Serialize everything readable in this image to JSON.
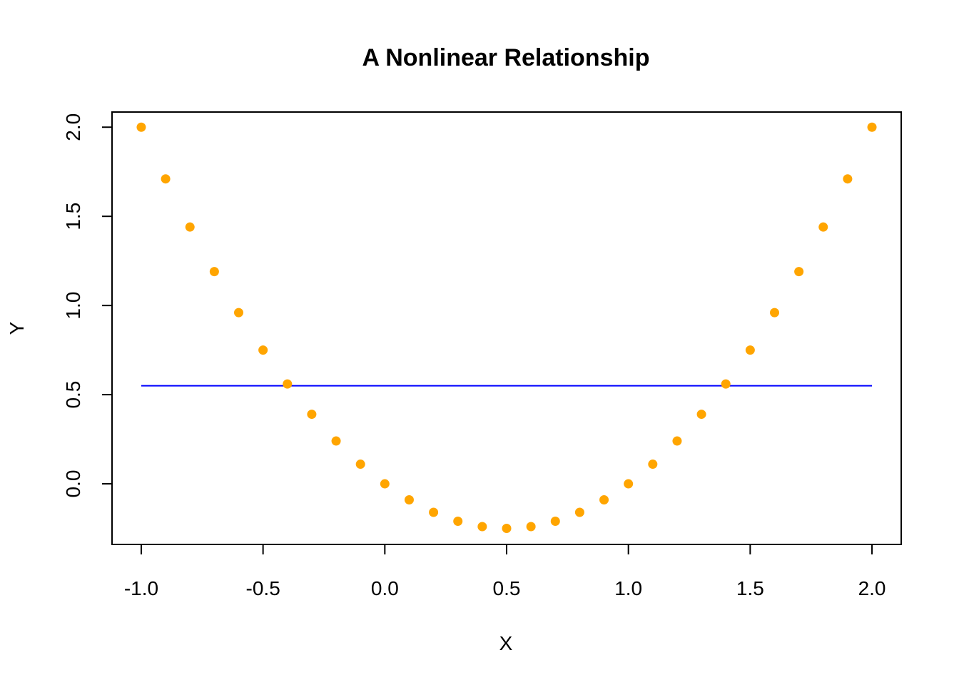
{
  "chart_data": {
    "type": "scatter",
    "title": "A Nonlinear Relationship",
    "xlabel": "X",
    "ylabel": "Y",
    "xlim": [
      -1.12,
      2.12
    ],
    "ylim": [
      -0.34,
      2.085
    ],
    "x_ticks": [
      -1.0,
      -0.5,
      0.0,
      0.5,
      1.0,
      1.5,
      2.0
    ],
    "x_tick_labels": [
      "-1.0",
      "-0.5",
      "0.0",
      "0.5",
      "1.0",
      "1.5",
      "2.0"
    ],
    "y_ticks": [
      0.0,
      0.5,
      1.0,
      1.5,
      2.0
    ],
    "y_tick_labels": [
      "0.0",
      "0.5",
      "1.0",
      "1.5",
      "2.0"
    ],
    "grid": false,
    "series": [
      {
        "type": "scatter",
        "color": "#FFA500",
        "x": [
          -1.0,
          -0.9,
          -0.8,
          -0.7,
          -0.6,
          -0.5,
          -0.4,
          -0.3,
          -0.2,
          -0.1,
          0.0,
          0.1,
          0.2,
          0.3,
          0.4,
          0.5,
          0.6,
          0.7,
          0.8,
          0.9,
          1.0,
          1.1,
          1.2,
          1.3,
          1.4,
          1.5,
          1.6,
          1.7,
          1.8,
          1.9,
          2.0
        ],
        "y": [
          2.0,
          1.71,
          1.44,
          1.19,
          0.96,
          0.75,
          0.56,
          0.39,
          0.24,
          0.11,
          0.0,
          -0.09,
          -0.16,
          -0.21,
          -0.24,
          -0.25,
          -0.24,
          -0.21,
          -0.16,
          -0.09,
          0.0,
          0.11,
          0.24,
          0.39,
          0.56,
          0.75,
          0.96,
          1.19,
          1.44,
          1.71,
          2.0
        ]
      },
      {
        "type": "line",
        "color": "#0000FF",
        "x": [
          -1.0,
          2.0
        ],
        "y": [
          0.55,
          0.55
        ]
      }
    ]
  }
}
